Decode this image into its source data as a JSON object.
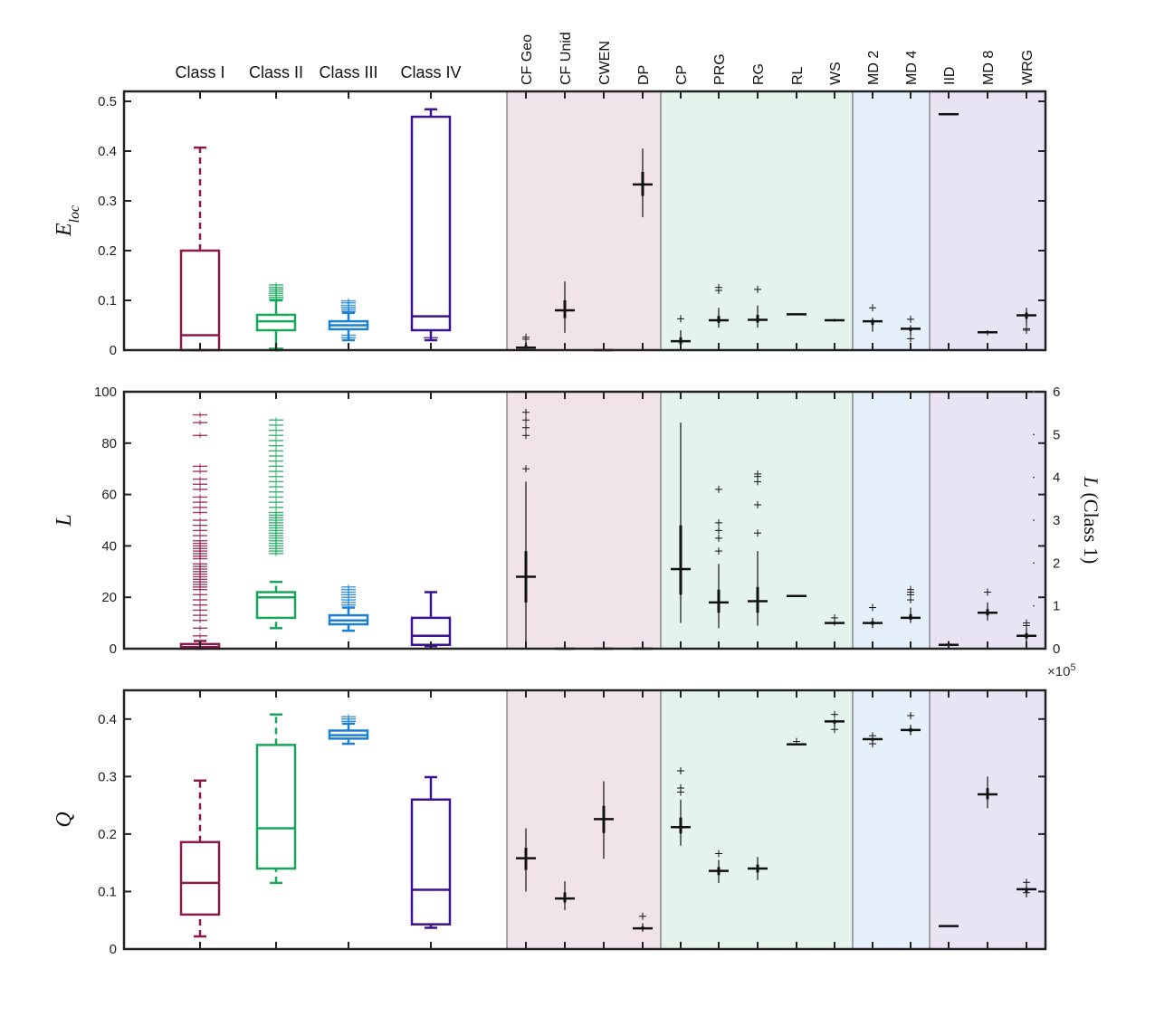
{
  "chart_data": {
    "type": "box",
    "class_labels": [
      "Class I",
      "Class II",
      "Class III",
      "Class IV"
    ],
    "class_colors": [
      "#8b1a4a",
      "#17a65a",
      "#1a7fd6",
      "#3d128f"
    ],
    "categories": [
      "CF Geo",
      "CF Unid",
      "CWEN",
      "DP",
      "CP",
      "PRG",
      "RG",
      "RL",
      "WS",
      "MD 2",
      "MD 4",
      "IID",
      "MD 8",
      "WRG"
    ],
    "category_groups": [
      {
        "name": "pink",
        "color": "#f0e4ea",
        "members": [
          "CF Geo",
          "CF Unid",
          "CWEN",
          "DP"
        ]
      },
      {
        "name": "green",
        "color": "#e4f4ec",
        "members": [
          "CP",
          "PRG",
          "RG",
          "RL",
          "WS"
        ]
      },
      {
        "name": "blue",
        "color": "#e5f0fb",
        "members": [
          "MD 2",
          "MD 4"
        ]
      },
      {
        "name": "purple",
        "color": "#e8e4f3",
        "members": [
          "IID",
          "MD 8",
          "WRG"
        ]
      }
    ],
    "panels": [
      {
        "id": "eloc",
        "ylabel_base": "E",
        "ylabel_sub": "loc",
        "ylim": [
          0,
          0.52
        ],
        "yticks": [
          "0",
          "0.1",
          "0.2",
          "0.3",
          "0.4",
          "0.5"
        ],
        "yticks_values": [
          0,
          0.1,
          0.2,
          0.3,
          0.4,
          0.5
        ],
        "class_boxes": [
          {
            "lo": 0,
            "q1": 0,
            "med": 0.03,
            "q3": 0.2,
            "hi": 0.407,
            "dashed": true,
            "outliers": []
          },
          {
            "lo": 0,
            "q1": 0.04,
            "med": 0.058,
            "q3": 0.071,
            "hi": 0.1,
            "dashed": false,
            "outliers": [
              0.102,
              0.106,
              0.11,
              0.114,
              0.118,
              0.122,
              0.126,
              0.131,
              0.002,
              0.004
            ]
          },
          {
            "lo": 0.02,
            "q1": 0.042,
            "med": 0.05,
            "q3": 0.058,
            "hi": 0.075,
            "dashed": false,
            "outliers": [
              0.078,
              0.082,
              0.086,
              0.09,
              0.095,
              0.099,
              0.025,
              0.03
            ]
          },
          {
            "lo": 0.02,
            "q1": 0.04,
            "med": 0.068,
            "q3": 0.469,
            "hi": 0.484,
            "dashed": false,
            "outliers": [
              0.025
            ]
          }
        ],
        "markers": [
          {
            "center": 0.005,
            "lo": 0,
            "hi": 0.02,
            "outliers": [
              0.022,
              0.026
            ]
          },
          {
            "center": 0.08,
            "lo": 0.035,
            "hi": 0.138,
            "outliers": []
          },
          {
            "center": 0,
            "lo": 0,
            "hi": 0,
            "outliers": []
          },
          {
            "center": 0.333,
            "lo": 0.267,
            "hi": 0.405,
            "outliers": []
          },
          {
            "center": 0.018,
            "lo": 0,
            "hi": 0.04,
            "outliers": [
              0.063
            ]
          },
          {
            "center": 0.06,
            "lo": 0.045,
            "hi": 0.085,
            "outliers": [
              0.12,
              0.126
            ]
          },
          {
            "center": 0.061,
            "lo": 0.045,
            "hi": 0.09,
            "outliers": [
              0.122
            ]
          },
          {
            "center": 0.072,
            "lo": 0.072,
            "hi": 0.072,
            "outliers": []
          },
          {
            "center": 0.06,
            "lo": 0.057,
            "hi": 0.063,
            "outliers": []
          },
          {
            "center": 0.058,
            "lo": 0.037,
            "hi": 0.065,
            "outliers": [
              0.085
            ]
          },
          {
            "center": 0.043,
            "lo": 0.03,
            "hi": 0.05,
            "outliers": [
              0.062,
              0.023
            ]
          },
          {
            "center": 0.474,
            "lo": 0.474,
            "hi": 0.474,
            "outliers": []
          },
          {
            "center": 0.036,
            "lo": 0.03,
            "hi": 0.04,
            "outliers": []
          },
          {
            "center": 0.07,
            "lo": 0.05,
            "hi": 0.085,
            "outliers": [
              0.043,
              0.04
            ]
          }
        ]
      },
      {
        "id": "L",
        "ylabel_base": "L",
        "ylim": [
          0,
          100
        ],
        "yticks": [
          "0",
          "20",
          "40",
          "60",
          "80",
          "100"
        ],
        "yticks_values": [
          0,
          20,
          40,
          60,
          80,
          100
        ],
        "right_ylabel": "L (Class 1)",
        "right_ylim": [
          0,
          6
        ],
        "right_yticks": [
          "0",
          "1",
          "2",
          "3",
          "4",
          "5",
          "6"
        ],
        "right_yticks_values": [
          0,
          1,
          2,
          3,
          4,
          5,
          6
        ],
        "right_multiplier": "×10",
        "right_multiplier_exp": "5",
        "class_boxes": [
          {
            "lo": 0,
            "q1": 0,
            "med": 0.6,
            "q3": 1.8,
            "hi": 3,
            "dashed": false,
            "outliers": [
              5,
              8,
              11,
              13,
              15,
              17,
              19,
              21,
              23,
              24,
              25,
              26,
              27,
              28,
              29,
              30,
              31,
              32,
              33,
              35,
              36,
              37,
              38,
              39,
              40,
              41,
              42,
              44,
              46,
              48,
              50,
              53,
              55,
              57,
              59,
              62,
              64,
              66,
              69,
              71,
              83,
              88,
              91
            ]
          },
          {
            "lo": 8,
            "q1": 12,
            "med": 20,
            "q3": 22,
            "hi": 26,
            "dashed": true,
            "outliers": [
              37,
              38,
              39,
              40,
              41,
              42,
              43,
              44,
              45,
              46,
              47,
              48,
              49,
              50,
              51,
              52,
              53,
              55,
              57,
              59,
              61,
              63,
              65,
              67,
              69,
              71,
              73,
              75,
              77,
              79,
              81,
              83,
              85,
              87,
              89
            ]
          },
          {
            "lo": 7,
            "q1": 9.5,
            "med": 11,
            "q3": 13,
            "hi": 16,
            "dashed": false,
            "outliers": [
              17,
              18,
              19,
              20,
              21,
              22,
              23,
              24
            ]
          },
          {
            "lo": 1,
            "q1": 1.5,
            "med": 5,
            "q3": 12,
            "hi": 22,
            "dashed": false,
            "outliers": []
          }
        ],
        "markers": [
          {
            "center": 28,
            "lo": 0,
            "hi": 65,
            "inner_lo": 18,
            "inner_hi": 38,
            "outliers": [
              70,
              83,
              86,
              89,
              92
            ]
          },
          {
            "center": 0,
            "lo": 0,
            "hi": 0,
            "outliers": []
          },
          {
            "center": 0,
            "lo": 0,
            "hi": 0,
            "outliers": []
          },
          {
            "center": 0,
            "lo": 0,
            "hi": 0,
            "outliers": []
          },
          {
            "center": 31,
            "lo": 10,
            "hi": 88,
            "inner_lo": 21,
            "inner_hi": 48,
            "outliers": []
          },
          {
            "center": 18,
            "lo": 8,
            "hi": 33,
            "inner_lo": 14,
            "inner_hi": 23,
            "outliers": [
              38,
              43,
              46,
              49,
              62
            ]
          },
          {
            "center": 18.5,
            "lo": 9,
            "hi": 38,
            "inner_lo": 14,
            "inner_hi": 24,
            "outliers": [
              45,
              56,
              65,
              67,
              68
            ]
          },
          {
            "center": 20.5,
            "lo": 20.5,
            "hi": 20.5,
            "outliers": []
          },
          {
            "center": 10,
            "lo": 9,
            "hi": 11,
            "outliers": [
              12
            ]
          },
          {
            "center": 10,
            "lo": 8,
            "hi": 12,
            "outliers": [
              16
            ]
          },
          {
            "center": 12,
            "lo": 10,
            "hi": 16,
            "outliers": [
              19,
              21,
              22,
              23
            ]
          },
          {
            "center": 1.5,
            "lo": 0.5,
            "hi": 3,
            "outliers": []
          },
          {
            "center": 14,
            "lo": 11,
            "hi": 18,
            "outliers": [
              22
            ]
          },
          {
            "center": 5,
            "lo": 2,
            "hi": 8,
            "outliers": [
              9,
              10
            ]
          }
        ]
      },
      {
        "id": "Q",
        "ylabel_base": "Q",
        "ylim": [
          0,
          0.45
        ],
        "yticks": [
          "0",
          "0.1",
          "0.2",
          "0.3",
          "0.4"
        ],
        "yticks_values": [
          0,
          0.1,
          0.2,
          0.3,
          0.4
        ],
        "class_boxes": [
          {
            "lo": 0.022,
            "q1": 0.06,
            "med": 0.115,
            "q3": 0.186,
            "hi": 0.293,
            "dashed": true,
            "outliers": []
          },
          {
            "lo": 0.115,
            "q1": 0.14,
            "med": 0.21,
            "q3": 0.355,
            "hi": 0.408,
            "dashed": true,
            "outliers": []
          },
          {
            "lo": 0.357,
            "q1": 0.366,
            "med": 0.372,
            "q3": 0.38,
            "hi": 0.392,
            "dashed": false,
            "outliers": [
              0.396,
              0.4,
              0.404
            ]
          },
          {
            "lo": 0.037,
            "q1": 0.043,
            "med": 0.103,
            "q3": 0.26,
            "hi": 0.299,
            "dashed": false,
            "outliers": []
          }
        ],
        "markers": [
          {
            "center": 0.158,
            "lo": 0.1,
            "hi": 0.21,
            "outliers": []
          },
          {
            "center": 0.088,
            "lo": 0.068,
            "hi": 0.118,
            "outliers": []
          },
          {
            "center": 0.226,
            "lo": 0.157,
            "hi": 0.292,
            "outliers": []
          },
          {
            "center": 0.036,
            "lo": 0.03,
            "hi": 0.045,
            "outliers": [
              0.057
            ]
          },
          {
            "center": 0.212,
            "lo": 0.18,
            "hi": 0.26,
            "outliers": [
              0.273,
              0.28,
              0.31
            ]
          },
          {
            "center": 0.136,
            "lo": 0.115,
            "hi": 0.155,
            "outliers": [
              0.166
            ]
          },
          {
            "center": 0.14,
            "lo": 0.12,
            "hi": 0.16,
            "outliers": []
          },
          {
            "center": 0.356,
            "lo": 0.356,
            "hi": 0.356,
            "outliers": [
              0.361
            ]
          },
          {
            "center": 0.396,
            "lo": 0.385,
            "hi": 0.4,
            "outliers": [
              0.382,
              0.408
            ]
          },
          {
            "center": 0.365,
            "lo": 0.358,
            "hi": 0.368,
            "outliers": [
              0.357,
              0.371
            ]
          },
          {
            "center": 0.381,
            "lo": 0.372,
            "hi": 0.39,
            "outliers": [
              0.406
            ]
          },
          {
            "center": 0.04,
            "lo": 0.04,
            "hi": 0.04,
            "outliers": []
          },
          {
            "center": 0.269,
            "lo": 0.245,
            "hi": 0.3,
            "outliers": []
          },
          {
            "center": 0.104,
            "lo": 0.09,
            "hi": 0.11,
            "outliers": [
              0.098,
              0.116
            ]
          }
        ]
      }
    ]
  }
}
